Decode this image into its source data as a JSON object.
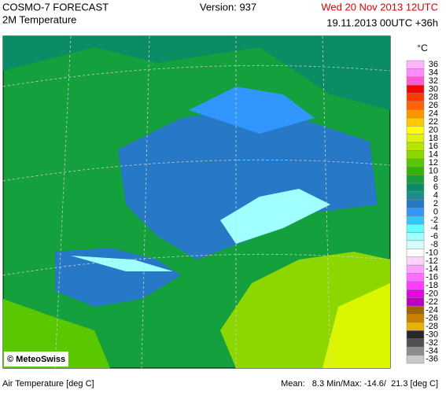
{
  "header": {
    "model": "COSMO-7 FORECAST",
    "field": "2M Temperature",
    "version": "Version: 937",
    "valid": "Wed 20 Nov 2013 12UTC",
    "run": "19.11.2013 00UTC +36h"
  },
  "legend": {
    "unit": "°C",
    "entries": [
      {
        "label": "36",
        "color": "#ffb4ff"
      },
      {
        "label": "34",
        "color": "#ff8cff"
      },
      {
        "label": "32",
        "color": "#ff5ad2"
      },
      {
        "label": "30",
        "color": "#ff0000"
      },
      {
        "label": "28",
        "color": "#ff3c00"
      },
      {
        "label": "26",
        "color": "#ff6400"
      },
      {
        "label": "24",
        "color": "#ff9600"
      },
      {
        "label": "22",
        "color": "#ffc800"
      },
      {
        "label": "20",
        "color": "#ffff00"
      },
      {
        "label": "18",
        "color": "#dcf500"
      },
      {
        "label": "16",
        "color": "#b4e600"
      },
      {
        "label": "14",
        "color": "#8cd700"
      },
      {
        "label": "12",
        "color": "#5ac800"
      },
      {
        "label": "10",
        "color": "#32b400"
      },
      {
        "label": "8",
        "color": "#14a03c"
      },
      {
        "label": "6",
        "color": "#0a8c64"
      },
      {
        "label": "4",
        "color": "#1e8c8c"
      },
      {
        "label": "2",
        "color": "#2878c8"
      },
      {
        "label": "0",
        "color": "#3296ff"
      },
      {
        "label": "-2",
        "color": "#32c8ff"
      },
      {
        "label": "-4",
        "color": "#64ffff"
      },
      {
        "label": "-6",
        "color": "#a0ffff"
      },
      {
        "label": "-8",
        "color": "#d2ffff"
      },
      {
        "label": "-10",
        "color": "#ffffff"
      },
      {
        "label": "-12",
        "color": "#ffd2ff"
      },
      {
        "label": "-14",
        "color": "#ffa0ff"
      },
      {
        "label": "-16",
        "color": "#ff6eff"
      },
      {
        "label": "-18",
        "color": "#ff3cff"
      },
      {
        "label": "-20",
        "color": "#e600e6"
      },
      {
        "label": "-22",
        "color": "#be00be"
      },
      {
        "label": "-24",
        "color": "#a06400"
      },
      {
        "label": "-26",
        "color": "#c88200"
      },
      {
        "label": "-28",
        "color": "#e6b400"
      },
      {
        "label": "-30",
        "color": "#282828"
      },
      {
        "label": "-32",
        "color": "#505050"
      },
      {
        "label": "-34",
        "color": "#8c8c8c"
      },
      {
        "label": "-36",
        "color": "#c8c8c8"
      }
    ]
  },
  "map": {
    "credit": "© MeteoSwiss"
  },
  "footer": {
    "variable": "Air Temperature [deg C]",
    "stats": "Mean:   8.3 Min/Max: -14.6/  21.3 [deg C]"
  }
}
